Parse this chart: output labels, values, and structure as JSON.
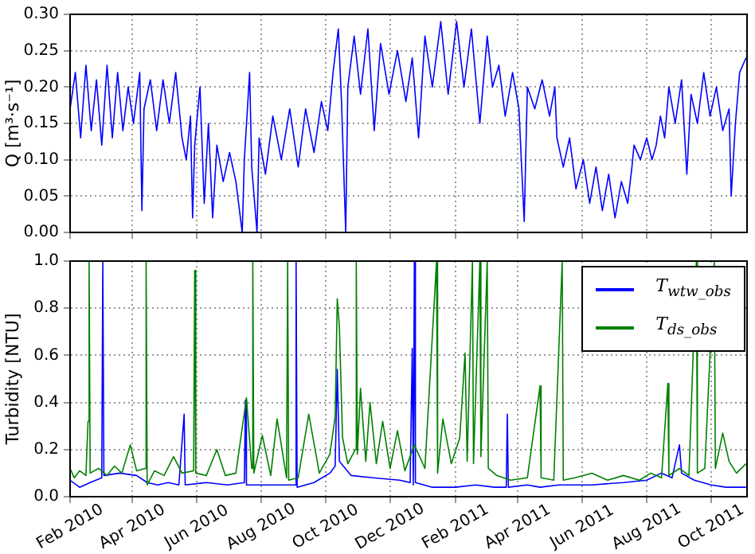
{
  "chart_data": [
    {
      "type": "line",
      "ylabel": "Q [m³·s⁻¹]",
      "xlim": [
        "2010-02-01",
        "2011-11-04"
      ],
      "ylim": [
        0,
        0.3
      ],
      "xticks": [
        {
          "value": "2010-02-01",
          "label": null
        },
        {
          "value": "2010-04-01",
          "label": null
        },
        {
          "value": "2010-06-01",
          "label": null
        },
        {
          "value": "2010-08-01",
          "label": null
        },
        {
          "value": "2010-10-01",
          "label": null
        },
        {
          "value": "2010-12-01",
          "label": null
        },
        {
          "value": "2011-02-01",
          "label": null
        },
        {
          "value": "2011-04-01",
          "label": null
        },
        {
          "value": "2011-06-01",
          "label": null
        },
        {
          "value": "2011-08-01",
          "label": null
        },
        {
          "value": "2011-10-01",
          "label": null
        }
      ],
      "yticks": [
        {
          "value": 0,
          "label": "0.00"
        },
        {
          "value": 0.05,
          "label": "0.05"
        },
        {
          "value": 0.1,
          "label": "0.10"
        },
        {
          "value": 0.15,
          "label": "0.15"
        },
        {
          "value": 0.2,
          "label": "0.20"
        },
        {
          "value": 0.25,
          "label": "0.25"
        },
        {
          "value": 0.3,
          "label": "0.30"
        }
      ],
      "grid": true,
      "tick_labels": "y",
      "series": [
        {
          "color": "#0000ff",
          "x": [
            "2010-02-01",
            "2010-02-06",
            "2010-02-11",
            "2010-02-16",
            "2010-02-21",
            "2010-02-26",
            "2010-03-03",
            "2010-03-08",
            "2010-03-13",
            "2010-03-18",
            "2010-03-23",
            "2010-03-28",
            "2010-04-02",
            "2010-04-08",
            "2010-04-10",
            "2010-04-12",
            "2010-04-18",
            "2010-04-24",
            "2010-04-30",
            "2010-05-06",
            "2010-05-12",
            "2010-05-18",
            "2010-05-22",
            "2010-05-26",
            "2010-05-28",
            "2010-05-30",
            "2010-06-04",
            "2010-06-08",
            "2010-06-12",
            "2010-06-16",
            "2010-06-20",
            "2010-06-26",
            "2010-07-02",
            "2010-07-08",
            "2010-07-14",
            "2010-07-16",
            "2010-07-21",
            "2010-07-23",
            "2010-07-28",
            "2010-07-30",
            "2010-08-05",
            "2010-08-12",
            "2010-08-20",
            "2010-08-28",
            "2010-09-05",
            "2010-09-12",
            "2010-09-20",
            "2010-09-27",
            "2010-10-03",
            "2010-10-08",
            "2010-10-13",
            "2010-10-16",
            "2010-10-20",
            "2010-10-22",
            "2010-10-28",
            "2010-11-03",
            "2010-11-10",
            "2010-11-16",
            "2010-11-22",
            "2010-11-30",
            "2010-12-08",
            "2010-12-16",
            "2010-12-22",
            "2010-12-28",
            "2011-01-03",
            "2011-01-10",
            "2011-01-18",
            "2011-01-25",
            "2011-02-02",
            "2011-02-09",
            "2011-02-16",
            "2011-02-24",
            "2011-03-03",
            "2011-03-08",
            "2011-03-14",
            "2011-03-20",
            "2011-03-27",
            "2011-04-02",
            "2011-04-07",
            "2011-04-10",
            "2011-04-17",
            "2011-04-24",
            "2011-05-01",
            "2011-05-06",
            "2011-05-08",
            "2011-05-14",
            "2011-05-20",
            "2011-05-26",
            "2011-06-02",
            "2011-06-08",
            "2011-06-14",
            "2011-06-20",
            "2011-06-26",
            "2011-07-02",
            "2011-07-08",
            "2011-07-14",
            "2011-07-18",
            "2011-07-20",
            "2011-07-26",
            "2011-08-01",
            "2011-08-06",
            "2011-08-10",
            "2011-08-14",
            "2011-08-18",
            "2011-08-22",
            "2011-08-28",
            "2011-09-03",
            "2011-09-08",
            "2011-09-12",
            "2011-09-18",
            "2011-09-24",
            "2011-09-30",
            "2011-10-06",
            "2011-10-12",
            "2011-10-18",
            "2011-10-20",
            "2011-10-24",
            "2011-10-28",
            "2011-11-03"
          ],
          "values": [
            0.17,
            0.22,
            0.13,
            0.23,
            0.14,
            0.21,
            0.12,
            0.23,
            0.13,
            0.22,
            0.14,
            0.2,
            0.15,
            0.22,
            0.03,
            0.17,
            0.21,
            0.14,
            0.21,
            0.15,
            0.22,
            0.13,
            0.1,
            0.16,
            0.02,
            0.12,
            0.2,
            0.04,
            0.15,
            0.02,
            0.12,
            0.07,
            0.11,
            0.07,
            0,
            0.1,
            0.22,
            0.09,
            0,
            0.13,
            0.08,
            0.16,
            0.1,
            0.17,
            0.09,
            0.17,
            0.11,
            0.18,
            0.14,
            0.22,
            0.28,
            0.18,
            0,
            0.2,
            0.27,
            0.19,
            0.28,
            0.14,
            0.26,
            0.19,
            0.25,
            0.18,
            0.24,
            0.13,
            0.27,
            0.2,
            0.29,
            0.19,
            0.29,
            0.2,
            0.28,
            0.15,
            0.27,
            0.2,
            0.23,
            0.16,
            0.22,
            0.17,
            0.015,
            0.2,
            0.17,
            0.21,
            0.16,
            0.2,
            0.13,
            0.09,
            0.13,
            0.06,
            0.1,
            0.04,
            0.09,
            0.03,
            0.08,
            0.02,
            0.07,
            0.04,
            0.09,
            0.12,
            0.1,
            0.13,
            0.1,
            0.12,
            0.16,
            0.13,
            0.2,
            0.15,
            0.21,
            0.08,
            0.19,
            0.15,
            0.22,
            0.16,
            0.2,
            0.14,
            0.17,
            0.05,
            0.15,
            0.22,
            0.24
          ]
        }
      ]
    },
    {
      "type": "line",
      "ylabel": "Turbidity [NTU]",
      "xlim": [
        "2010-02-01",
        "2011-11-04"
      ],
      "ylim": [
        0,
        1
      ],
      "xticks": [
        {
          "value": "2010-02-01",
          "label": "Feb 2010"
        },
        {
          "value": "2010-04-01",
          "label": "Apr 2010"
        },
        {
          "value": "2010-06-01",
          "label": "Jun 2010"
        },
        {
          "value": "2010-08-01",
          "label": "Aug 2010"
        },
        {
          "value": "2010-10-01",
          "label": "Oct 2010"
        },
        {
          "value": "2010-12-01",
          "label": "Dec 2010"
        },
        {
          "value": "2011-02-01",
          "label": "Feb 2011"
        },
        {
          "value": "2011-04-01",
          "label": "Apr 2011"
        },
        {
          "value": "2011-06-01",
          "label": "Jun 2011"
        },
        {
          "value": "2011-08-01",
          "label": "Aug 2011"
        },
        {
          "value": "2011-10-01",
          "label": "Oct 2011"
        }
      ],
      "yticks": [
        {
          "value": 0,
          "label": "0.0"
        },
        {
          "value": 0.2,
          "label": "0.2"
        },
        {
          "value": 0.4,
          "label": "0.4"
        },
        {
          "value": 0.6,
          "label": "0.6"
        },
        {
          "value": 0.8,
          "label": "0.8"
        },
        {
          "value": 1,
          "label": "1.0"
        }
      ],
      "grid": true,
      "legend": "top right",
      "series": [
        {
          "name": "T$_{ds_obs}$",
          "color": "#008000",
          "x": [
            "2010-02-01",
            "2010-02-05",
            "2010-02-10",
            "2010-02-16",
            "2010-02-18",
            "2010-02-19",
            "2010-02-20",
            "2010-02-28",
            "2010-03-08",
            "2010-03-15",
            "2010-03-22",
            "2010-03-30",
            "2010-04-05",
            "2010-04-13",
            "2010-04-14",
            "2010-04-15",
            "2010-04-22",
            "2010-05-01",
            "2010-05-10",
            "2010-05-18",
            "2010-05-29",
            "2010-05-30",
            "2010-05-31",
            "2010-06-10",
            "2010-06-20",
            "2010-06-28",
            "2010-07-08",
            "2010-07-18",
            "2010-07-23",
            "2010-07-24",
            "2010-07-25",
            "2010-08-02",
            "2010-08-10",
            "2010-08-16",
            "2010-08-25",
            "2010-08-26",
            "2010-08-27",
            "2010-09-05",
            "2010-09-15",
            "2010-09-25",
            "2010-10-05",
            "2010-10-10",
            "2010-10-12",
            "2010-10-14",
            "2010-10-17",
            "2010-10-22",
            "2010-10-29",
            "2010-10-30",
            "2010-10-31",
            "2010-11-03",
            "2010-11-08",
            "2010-11-12",
            "2010-11-18",
            "2010-11-24",
            "2010-12-01",
            "2010-12-08",
            "2010-12-15",
            "2010-12-24",
            "2011-01-03",
            "2011-01-14",
            "2011-01-15",
            "2011-01-20",
            "2011-01-28",
            "2011-02-05",
            "2011-02-10",
            "2011-02-12",
            "2011-02-17",
            "2011-02-18",
            "2011-02-24",
            "2011-02-25",
            "2011-03-03",
            "2011-03-04",
            "2011-03-12",
            "2011-03-25",
            "2011-04-10",
            "2011-04-22",
            "2011-04-23",
            "2011-05-05",
            "2011-05-13",
            "2011-05-14",
            "2011-05-25",
            "2011-06-10",
            "2011-06-25",
            "2011-07-10",
            "2011-07-25",
            "2011-08-05",
            "2011-08-15",
            "2011-08-21",
            "2011-08-22",
            "2011-09-01",
            "2011-09-10",
            "2011-09-17",
            "2011-09-18",
            "2011-09-25",
            "2011-10-04",
            "2011-10-05",
            "2011-10-12",
            "2011-10-18",
            "2011-10-25",
            "2011-11-03"
          ],
          "values": [
            0.12,
            0.08,
            0.11,
            0.09,
            0.32,
            1,
            0.1,
            0.12,
            0.09,
            0.13,
            0.1,
            0.22,
            0.11,
            0.12,
            1,
            0.05,
            0.11,
            0.09,
            0.17,
            0.1,
            0.11,
            0.96,
            0.1,
            0.09,
            0.2,
            0.09,
            0.1,
            0.42,
            0.12,
            1,
            0.1,
            0.26,
            0.09,
            0.33,
            0.08,
            1,
            0.07,
            0.08,
            0.35,
            0.1,
            0.18,
            0.34,
            0.84,
            0.72,
            0.25,
            0.14,
            0.2,
            1,
            0.18,
            0.46,
            0.15,
            0.4,
            0.14,
            0.32,
            0.12,
            0.28,
            0.11,
            0.22,
            0.12,
            1,
            0.1,
            0.33,
            0.14,
            0.25,
            0.61,
            0.15,
            1,
            0.14,
            1,
            0.17,
            1,
            0.12,
            0.09,
            0.07,
            0.08,
            0.47,
            0.08,
            0.07,
            1,
            0.07,
            0.08,
            0.1,
            0.07,
            0.09,
            0.07,
            0.1,
            0.08,
            0.48,
            0.09,
            0.12,
            0.09,
            1,
            0.1,
            0.12,
            1,
            0.12,
            0.27,
            0.15,
            0.1,
            0.14
          ]
        },
        {
          "name": "T$_{wtw_obs}$",
          "color": "#0000ff",
          "x": [
            "2010-02-01",
            "2010-02-10",
            "2010-02-20",
            "2010-03-03",
            "2010-03-04",
            "2010-03-05",
            "2010-03-20",
            "2010-04-05",
            "2010-04-15",
            "2010-04-25",
            "2010-05-05",
            "2010-05-15",
            "2010-05-20",
            "2010-05-21",
            "2010-06-10",
            "2010-06-30",
            "2010-07-16",
            "2010-07-17",
            "2010-07-18",
            "2010-08-10",
            "2010-08-25",
            "2010-09-02",
            "2010-09-03",
            "2010-09-04",
            "2010-09-20",
            "2010-10-05",
            "2010-10-10",
            "2010-10-12",
            "2010-10-14",
            "2010-10-25",
            "2010-11-15",
            "2010-12-10",
            "2010-12-20",
            "2010-12-22",
            "2010-12-23",
            "2010-12-24",
            "2010-12-25",
            "2011-01-10",
            "2011-02-01",
            "2011-02-20",
            "2011-03-10",
            "2011-03-21",
            "2011-03-22",
            "2011-03-23",
            "2011-04-10",
            "2011-04-22",
            "2011-05-10",
            "2011-06-10",
            "2011-07-10",
            "2011-08-01",
            "2011-08-15",
            "2011-08-25",
            "2011-09-01",
            "2011-09-03",
            "2011-09-15",
            "2011-10-01",
            "2011-10-15",
            "2011-11-03"
          ],
          "values": [
            0.07,
            0.04,
            0.06,
            0.08,
            1,
            0.09,
            0.1,
            0.09,
            0.06,
            0.05,
            0.06,
            0.05,
            0.35,
            0.05,
            0.06,
            0.05,
            0.06,
            0.41,
            0.05,
            0.05,
            0.05,
            0.05,
            1,
            0.04,
            0.06,
            0.1,
            0.13,
            0.54,
            0.15,
            0.09,
            0.08,
            0.07,
            0.06,
            0.63,
            0.05,
            1,
            0.06,
            0.04,
            0.04,
            0.05,
            0.04,
            0.04,
            0.35,
            0.04,
            0.05,
            0.04,
            0.05,
            0.05,
            0.06,
            0.07,
            0.1,
            0.08,
            0.22,
            0.1,
            0.07,
            0.05,
            0.04,
            0.04
          ]
        }
      ]
    }
  ]
}
